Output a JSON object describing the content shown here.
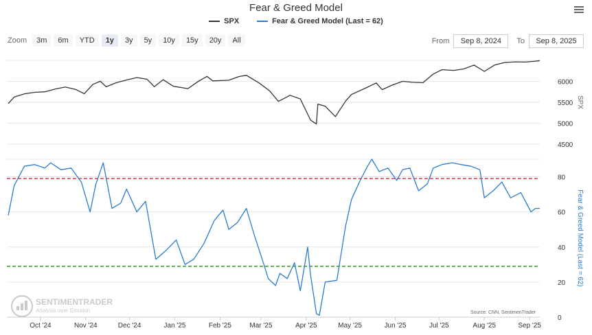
{
  "chart_data": {
    "type": "line",
    "title": "Fear & Greed Model",
    "legend": [
      {
        "name": "SPX",
        "color": "#333333"
      },
      {
        "name": "Fear & Greed Model (Last = 62)",
        "color": "#2b7bd0"
      }
    ],
    "x_tick_labels": [
      "Oct '24",
      "Nov '24",
      "Dec '24",
      "Jan '25",
      "Feb '25",
      "Mar '25",
      "Apr '25",
      "May '25",
      "Jun '25",
      "Jul '25",
      "Aug '25",
      "Sep '25"
    ],
    "x_tick_dates": [
      "2024-10-01",
      "2024-11-01",
      "2024-12-01",
      "2025-01-01",
      "2025-02-01",
      "2025-03-01",
      "2025-04-01",
      "2025-05-01",
      "2025-06-01",
      "2025-07-01",
      "2025-08-01",
      "2025-09-01"
    ],
    "x_range": [
      "2024-09-08",
      "2025-09-08"
    ],
    "panels": [
      {
        "name": "SPX",
        "ylabel": "SPX",
        "ylim": [
          4500,
          6500
        ],
        "ticks": [
          4500,
          5000,
          5500,
          6000
        ],
        "series": {
          "name": "SPX",
          "color": "#333333",
          "points": [
            [
              "2024-09-09",
              5470
            ],
            [
              "2024-09-13",
              5625
            ],
            [
              "2024-09-20",
              5702
            ],
            [
              "2024-09-27",
              5738
            ],
            [
              "2024-10-04",
              5751
            ],
            [
              "2024-10-11",
              5815
            ],
            [
              "2024-10-18",
              5864
            ],
            [
              "2024-10-25",
              5808
            ],
            [
              "2024-10-31",
              5705
            ],
            [
              "2024-11-06",
              5929
            ],
            [
              "2024-11-11",
              6001
            ],
            [
              "2024-11-15",
              5870
            ],
            [
              "2024-11-22",
              5969
            ],
            [
              "2024-11-29",
              6032
            ],
            [
              "2024-12-06",
              6090
            ],
            [
              "2024-12-13",
              6051
            ],
            [
              "2024-12-18",
              5872
            ],
            [
              "2024-12-24",
              6040
            ],
            [
              "2024-12-31",
              5882
            ],
            [
              "2025-01-10",
              5827
            ],
            [
              "2025-01-17",
              5997
            ],
            [
              "2025-01-23",
              6118
            ],
            [
              "2025-01-27",
              6012
            ],
            [
              "2025-02-07",
              6026
            ],
            [
              "2025-02-14",
              6114
            ],
            [
              "2025-02-19",
              6144
            ],
            [
              "2025-02-28",
              5955
            ],
            [
              "2025-03-07",
              5770
            ],
            [
              "2025-03-13",
              5521
            ],
            [
              "2025-03-21",
              5667
            ],
            [
              "2025-03-28",
              5580
            ],
            [
              "2025-04-04",
              5074
            ],
            [
              "2025-04-08",
              4982
            ],
            [
              "2025-04-09",
              5457
            ],
            [
              "2025-04-14",
              5406
            ],
            [
              "2025-04-21",
              5158
            ],
            [
              "2025-04-28",
              5528
            ],
            [
              "2025-05-02",
              5686
            ],
            [
              "2025-05-12",
              5844
            ],
            [
              "2025-05-19",
              5963
            ],
            [
              "2025-05-23",
              5802
            ],
            [
              "2025-05-30",
              5911
            ],
            [
              "2025-06-06",
              6000
            ],
            [
              "2025-06-13",
              5977
            ],
            [
              "2025-06-20",
              5967
            ],
            [
              "2025-06-27",
              6173
            ],
            [
              "2025-07-03",
              6279
            ],
            [
              "2025-07-11",
              6260
            ],
            [
              "2025-07-18",
              6297
            ],
            [
              "2025-07-25",
              6389
            ],
            [
              "2025-08-01",
              6238
            ],
            [
              "2025-08-08",
              6389
            ],
            [
              "2025-08-15",
              6450
            ],
            [
              "2025-08-22",
              6466
            ],
            [
              "2025-08-29",
              6460
            ],
            [
              "2025-09-05",
              6482
            ],
            [
              "2025-09-08",
              6495
            ]
          ]
        }
      },
      {
        "name": "Fear & Greed Model",
        "ylabel": "Fear & Greed Model (Last = 62)",
        "ylim": [
          0,
          90
        ],
        "ticks": [
          0,
          20,
          40,
          60,
          80
        ],
        "reference_lines": [
          {
            "value": 79,
            "color": "#e23b4e"
          },
          {
            "value": 29,
            "color": "#2e9a20"
          }
        ],
        "series": {
          "name": "Fear & Greed Model (Last = 62)",
          "color": "#2b7bd0",
          "last": 62,
          "points": [
            [
              "2024-09-09",
              58
            ],
            [
              "2024-09-13",
              75
            ],
            [
              "2024-09-20",
              86
            ],
            [
              "2024-09-27",
              87
            ],
            [
              "2024-10-04",
              85
            ],
            [
              "2024-10-08",
              88
            ],
            [
              "2024-10-15",
              84
            ],
            [
              "2024-10-22",
              85
            ],
            [
              "2024-10-29",
              77
            ],
            [
              "2024-11-04",
              60
            ],
            [
              "2024-11-08",
              76
            ],
            [
              "2024-11-13",
              88
            ],
            [
              "2024-11-19",
              62
            ],
            [
              "2024-11-25",
              65
            ],
            [
              "2024-11-29",
              73
            ],
            [
              "2024-12-06",
              60
            ],
            [
              "2024-12-12",
              66
            ],
            [
              "2024-12-19",
              33
            ],
            [
              "2024-12-26",
              38
            ],
            [
              "2025-01-02",
              44
            ],
            [
              "2025-01-08",
              30
            ],
            [
              "2025-01-14",
              33
            ],
            [
              "2025-01-21",
              42
            ],
            [
              "2025-01-28",
              55
            ],
            [
              "2025-02-03",
              61
            ],
            [
              "2025-02-07",
              50
            ],
            [
              "2025-02-13",
              54
            ],
            [
              "2025-02-19",
              62
            ],
            [
              "2025-02-24",
              48
            ],
            [
              "2025-03-03",
              30
            ],
            [
              "2025-03-06",
              22
            ],
            [
              "2025-03-11",
              18
            ],
            [
              "2025-03-14",
              25
            ],
            [
              "2025-03-19",
              22
            ],
            [
              "2025-03-24",
              31
            ],
            [
              "2025-03-28",
              15
            ],
            [
              "2025-04-02",
              40
            ],
            [
              "2025-04-04",
              24
            ],
            [
              "2025-04-08",
              2
            ],
            [
              "2025-04-10",
              1
            ],
            [
              "2025-04-14",
              20
            ],
            [
              "2025-04-22",
              21
            ],
            [
              "2025-04-28",
              52
            ],
            [
              "2025-05-02",
              67
            ],
            [
              "2025-05-08",
              78
            ],
            [
              "2025-05-13",
              86
            ],
            [
              "2025-05-16",
              90
            ],
            [
              "2025-05-21",
              83
            ],
            [
              "2025-05-27",
              85
            ],
            [
              "2025-06-02",
              78
            ],
            [
              "2025-06-06",
              84
            ],
            [
              "2025-06-11",
              85
            ],
            [
              "2025-06-17",
              72
            ],
            [
              "2025-06-23",
              76
            ],
            [
              "2025-06-27",
              85
            ],
            [
              "2025-07-03",
              87
            ],
            [
              "2025-07-10",
              88
            ],
            [
              "2025-07-16",
              87
            ],
            [
              "2025-07-23",
              86
            ],
            [
              "2025-07-29",
              84
            ],
            [
              "2025-08-01",
              68
            ],
            [
              "2025-08-07",
              72
            ],
            [
              "2025-08-13",
              77
            ],
            [
              "2025-08-19",
              68
            ],
            [
              "2025-08-26",
              71
            ],
            [
              "2025-09-02",
              60
            ],
            [
              "2025-09-05",
              62
            ],
            [
              "2025-09-08",
              62
            ]
          ]
        }
      }
    ],
    "credit": "Source: CNN, SentimenTrader"
  },
  "ui": {
    "zoom_label": "Zoom",
    "zoom_options": [
      "3m",
      "6m",
      "YTD",
      "1y",
      "3y",
      "5y",
      "10y",
      "15y",
      "20y",
      "All"
    ],
    "zoom_selected": "1y",
    "from_label": "From",
    "from_value": "Sep 8, 2024",
    "to_label": "To",
    "to_value": "Sep 8, 2025",
    "watermark": {
      "brand": "SENTIMENTRADER",
      "tagline": "Analysis over Emotion"
    },
    "colors": {
      "spx": "#333333",
      "fg": "#2b7bd0",
      "overbought": "#e23b4e",
      "oversold": "#2e9a20",
      "watermark": "#c9c9c9"
    }
  }
}
